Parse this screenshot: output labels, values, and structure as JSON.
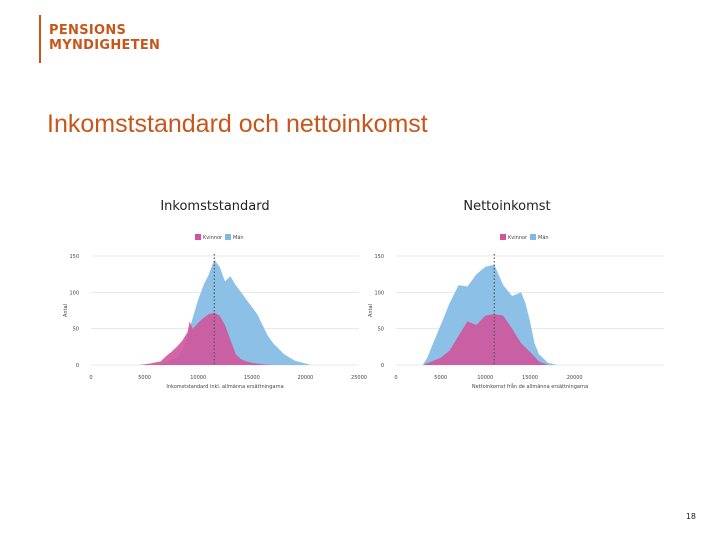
{
  "header": {
    "logo_line1": "PENSIONS",
    "logo_line2": "MYNDIGHETEN"
  },
  "slide": {
    "title": "Inkomststandard och nettoinkomst",
    "page_number": "18"
  },
  "colors": {
    "brand": "#c8561b",
    "series_women": "#d0559c",
    "series_men": "#7fb9e4",
    "grid": "#e3e3e3",
    "axis_text": "#444444"
  },
  "chart_data": [
    {
      "type": "area",
      "title": "Inkomststandard",
      "xlabel": "Inkomststandard inkl. allmänna ersättningarna",
      "ylabel": "Antal",
      "xlim": [
        0,
        25000
      ],
      "ylim": [
        0,
        150
      ],
      "x_ticks": [
        0,
        5000,
        10000,
        15000,
        20000,
        25000
      ],
      "x_tick_labels": [
        "0",
        "5000",
        "10000",
        "15000",
        "20000",
        "25000"
      ],
      "y_ticks": [
        0,
        50,
        100,
        150
      ],
      "y_tick_labels": [
        "0",
        "50",
        "100",
        "150"
      ],
      "grid": true,
      "legend_position": "top-center",
      "reference_line_x": 11500,
      "series": [
        {
          "name": "Kvinnor",
          "color": "#d0559c",
          "x": [
            0,
            4500,
            5500,
            6500,
            7000,
            7500,
            8000,
            8500,
            9000,
            9200,
            9500,
            10000,
            10500,
            11000,
            11500,
            12000,
            12500,
            13000,
            13500,
            14000,
            14500,
            15000,
            16000,
            17000,
            18000
          ],
          "y": [
            0,
            0,
            2,
            5,
            12,
            18,
            25,
            33,
            45,
            60,
            50,
            58,
            65,
            70,
            72,
            68,
            55,
            35,
            15,
            8,
            5,
            3,
            1,
            0,
            0
          ]
        },
        {
          "name": "Män",
          "color": "#7fb9e4",
          "x": [
            0,
            6000,
            7000,
            7500,
            8000,
            8500,
            9000,
            9500,
            10000,
            10500,
            11000,
            11500,
            12000,
            12500,
            13000,
            13500,
            14000,
            14500,
            15000,
            15500,
            16000,
            16500,
            17000,
            18000,
            19000,
            20000,
            20500
          ],
          "y": [
            0,
            0,
            3,
            8,
            10,
            20,
            40,
            65,
            90,
            110,
            125,
            145,
            135,
            115,
            122,
            110,
            100,
            90,
            80,
            70,
            55,
            40,
            30,
            15,
            6,
            2,
            0
          ]
        }
      ]
    },
    {
      "type": "area",
      "title": "Nettoinkomst",
      "xlabel": "Nettoinkomst från de allmänna ersättningarna",
      "ylabel": "Antal",
      "xlim": [
        0,
        30000
      ],
      "ylim": [
        0,
        150
      ],
      "x_ticks": [
        0,
        5000,
        10000,
        15000,
        20000
      ],
      "x_tick_labels": [
        "0",
        "5000",
        "10000",
        "15000",
        "20000"
      ],
      "y_ticks": [
        0,
        50,
        100,
        150
      ],
      "y_tick_labels": [
        "0",
        "50",
        "100",
        "150"
      ],
      "grid": true,
      "legend_position": "top-center",
      "reference_line_x": 11000,
      "series": [
        {
          "name": "Kvinnor",
          "color": "#d0559c",
          "x": [
            0,
            3000,
            4000,
            5000,
            6000,
            7000,
            8000,
            9000,
            10000,
            11000,
            12000,
            13000,
            14000,
            15000,
            16000,
            17000
          ],
          "y": [
            0,
            0,
            5,
            10,
            20,
            40,
            60,
            55,
            68,
            70,
            68,
            50,
            30,
            18,
            5,
            0
          ]
        },
        {
          "name": "Män",
          "color": "#7fb9e4",
          "x": [
            0,
            3000,
            3500,
            4000,
            5000,
            6000,
            7000,
            8000,
            9000,
            10000,
            11000,
            12000,
            13000,
            14000,
            14500,
            15000,
            15500,
            16000,
            17000,
            18000
          ],
          "y": [
            0,
            0,
            10,
            25,
            55,
            85,
            110,
            108,
            125,
            135,
            138,
            110,
            95,
            100,
            85,
            60,
            30,
            15,
            3,
            0
          ]
        }
      ]
    }
  ]
}
